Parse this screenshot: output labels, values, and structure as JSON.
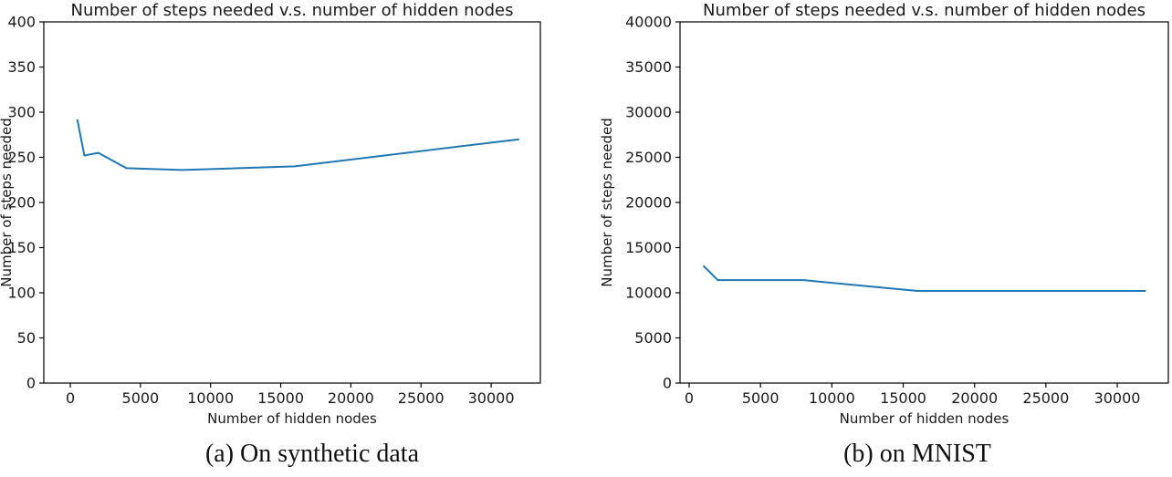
{
  "page": {
    "background": "#ffffff"
  },
  "chart_data": [
    {
      "type": "line",
      "title": "Number of steps needed v.s. number of hidden nodes",
      "xlabel": "Number of hidden nodes",
      "ylabel": "Number of steps needed",
      "caption": "(a) On synthetic data",
      "x": [
        500,
        1000,
        2000,
        4000,
        8000,
        16000,
        32000
      ],
      "y": [
        292,
        252,
        255,
        238,
        236,
        240,
        270
      ],
      "xlim": [
        -1890,
        33510
      ],
      "ylim": [
        0,
        400
      ],
      "xticks": [
        0,
        5000,
        10000,
        15000,
        20000,
        25000,
        30000
      ],
      "xtick_labels": [
        "0",
        "5000",
        "10000",
        "15000",
        "20000",
        "25000",
        "30000"
      ],
      "yticks": [
        0,
        50,
        100,
        150,
        200,
        250,
        300,
        350,
        400
      ],
      "ytick_labels": [
        "0",
        "50",
        "100",
        "150",
        "200",
        "250",
        "300",
        "350",
        "400"
      ],
      "grid": false,
      "legend": null,
      "line_color": "#1f77b4",
      "axis_color": "#000000",
      "text_color": "#1a1a1a"
    },
    {
      "type": "line",
      "title": "Number of steps needed v.s. number of hidden nodes",
      "xlabel": "Number of hidden nodes",
      "ylabel": "Number of steps needed",
      "caption": "(b) on MNIST",
      "x": [
        1000,
        2000,
        4000,
        8000,
        16000,
        32000
      ],
      "y": [
        13000,
        11400,
        11400,
        11400,
        10200,
        10200
      ],
      "xlim": [
        -640,
        33580
      ],
      "ylim": [
        0,
        40000
      ],
      "xticks": [
        0,
        5000,
        10000,
        15000,
        20000,
        25000,
        30000
      ],
      "xtick_labels": [
        "0",
        "5000",
        "10000",
        "15000",
        "20000",
        "25000",
        "30000"
      ],
      "yticks": [
        0,
        5000,
        10000,
        15000,
        20000,
        25000,
        30000,
        35000,
        40000
      ],
      "ytick_labels": [
        "0",
        "5000",
        "10000",
        "15000",
        "20000",
        "25000",
        "30000",
        "35000",
        "40000"
      ],
      "grid": false,
      "legend": null,
      "line_color": "#1f77b4",
      "axis_color": "#000000",
      "text_color": "#1a1a1a"
    }
  ]
}
